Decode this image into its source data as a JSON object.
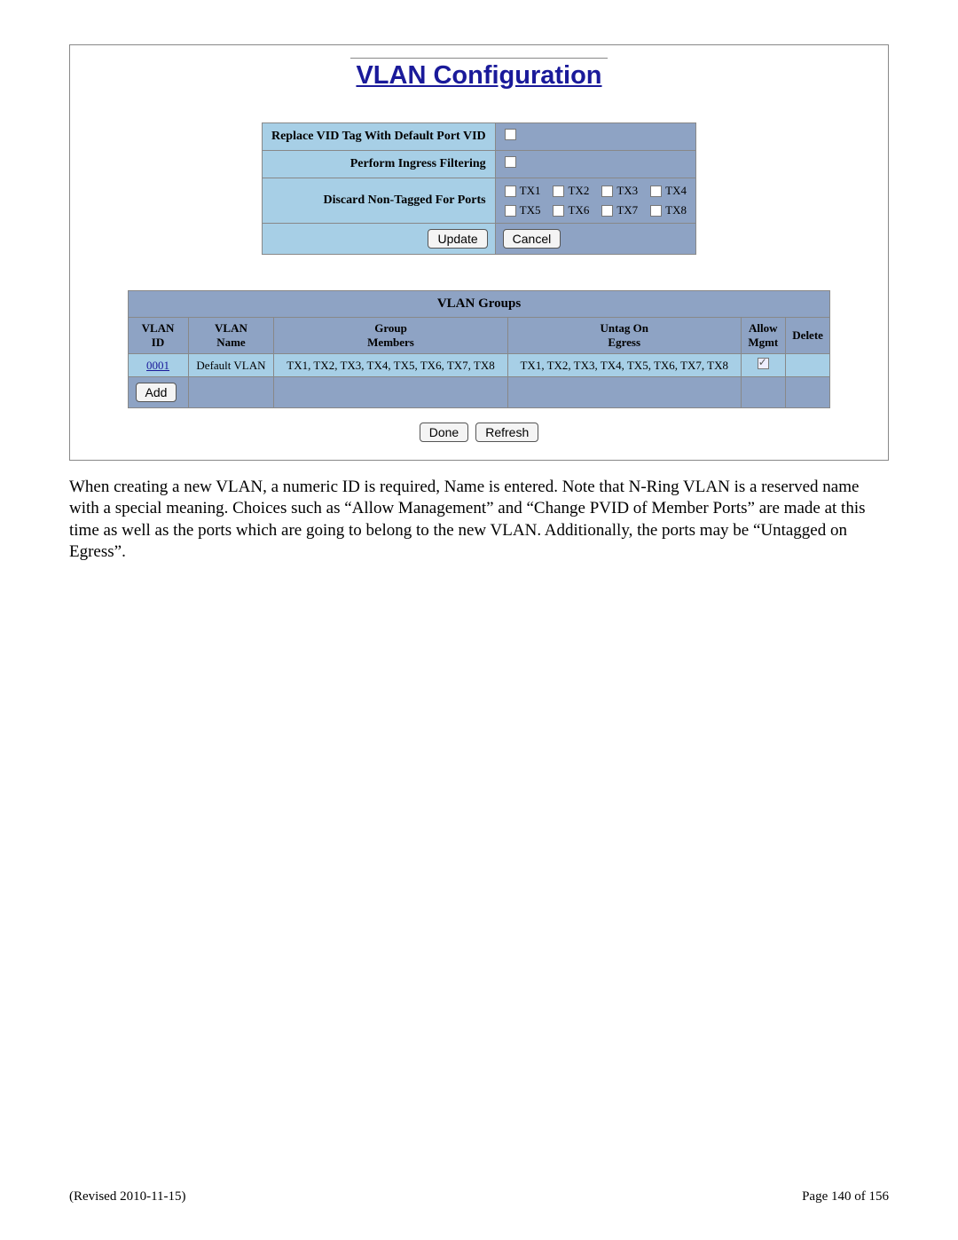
{
  "colors": {
    "title_color": "#1a1a9a",
    "label_bg": "#a7cfe6",
    "value_bg": "#8ea3c4",
    "border": "#888888",
    "page_bg": "#ffffff"
  },
  "panel": {
    "title": "VLAN Configuration",
    "config_rows": {
      "replace_vid_label": "Replace VID Tag With Default Port VID",
      "replace_vid_checked": false,
      "ingress_label": "Perform Ingress Filtering",
      "ingress_checked": false,
      "discard_label": "Discard Non-Tagged For Ports",
      "ports": [
        "TX1",
        "TX2",
        "TX3",
        "TX4",
        "TX5",
        "TX6",
        "TX7",
        "TX8"
      ]
    },
    "update_label": "Update",
    "cancel_label": "Cancel"
  },
  "groups": {
    "title": "VLAN Groups",
    "headers": {
      "vlan_id": "VLAN\nID",
      "vlan_name": "VLAN\nName",
      "members": "Group\nMembers",
      "untag": "Untag On\nEgress",
      "allow_mgmt": "Allow\nMgmt",
      "delete": "Delete"
    },
    "rows": [
      {
        "id": "0001",
        "name": "Default VLAN",
        "members": "TX1, TX2, TX3, TX4, TX5, TX6, TX7, TX8",
        "untag": "TX1, TX2, TX3, TX4, TX5, TX6, TX7, TX8",
        "allow_mgmt": true,
        "delete": ""
      }
    ],
    "add_label": "Add"
  },
  "bottom_buttons": {
    "done": "Done",
    "refresh": "Refresh"
  },
  "body_text": "When creating a new VLAN, a numeric ID is required, Name is entered. Note that N-Ring VLAN is a reserved name with a special meaning. Choices such as “Allow Management” and “Change PVID of Member Ports” are made at this time as well as the ports which are going to belong to the new VLAN. Additionally, the ports may be “Untagged on Egress”.",
  "footer": {
    "revised": "(Revised 2010-11-15)",
    "page": "Page 140 of 156"
  }
}
